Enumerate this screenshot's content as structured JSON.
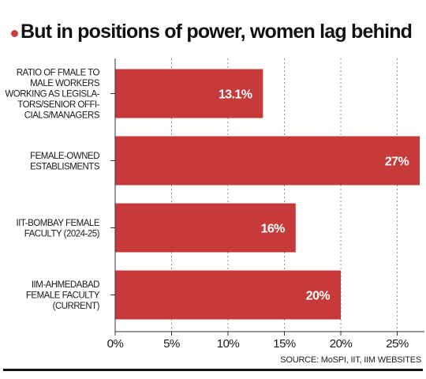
{
  "title": "But in positions of power, women lag behind",
  "source": "SOURCE: MoSPI, IIT, IIM WEBSITES",
  "colors": {
    "bar": "#c63b3a",
    "grid": "#8a8a8a",
    "accent": "#c8403c"
  },
  "chart_data": {
    "type": "bar",
    "orientation": "horizontal",
    "title": "But in positions of power, women lag behind",
    "xlabel": "",
    "ylabel": "",
    "xlim": [
      0,
      27
    ],
    "ticks": [
      0,
      5,
      10,
      15,
      20,
      25
    ],
    "tick_labels": [
      "0%",
      "5%",
      "10%",
      "15%",
      "20%",
      "25%"
    ],
    "grid": true,
    "categories": [
      [
        "RATIO OF FMALE TO",
        "MALE WORKERS",
        "WORKING AS LEGISLA-",
        "TORS/SENIOR OFFI-",
        "CIALS/MANAGERS"
      ],
      [
        "FEMALE-OWNED",
        "ESTABLISMENTS"
      ],
      [
        "IIT-BOMBAY FEMALE",
        "FACULTY (2024-25)"
      ],
      [
        "IIM-AHMEDABAD",
        "FEMALE FACULTY",
        "(CURRENT)"
      ]
    ],
    "values": [
      13.1,
      27,
      16,
      20
    ],
    "value_labels": [
      "13.1%",
      "27%",
      "16%",
      "20%"
    ]
  }
}
